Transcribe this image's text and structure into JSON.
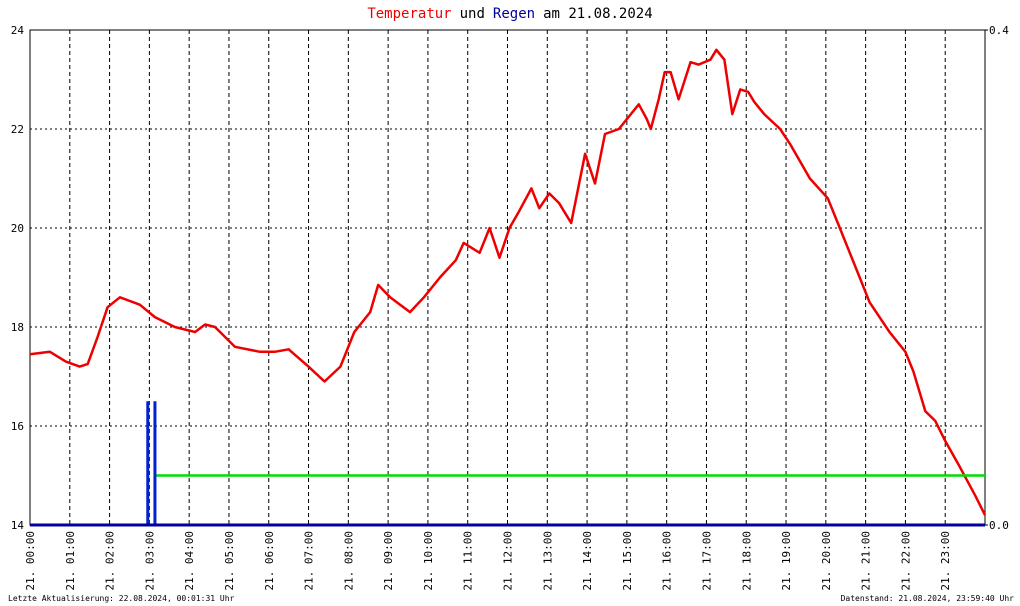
{
  "chart_data": {
    "type": "line",
    "title_parts": [
      {
        "text": "Temperatur",
        "color": "#ee0000"
      },
      {
        "text": "und",
        "color": "#000000"
      },
      {
        "text": "Regen",
        "color": "#000099"
      },
      {
        "text": "am 21.08.2024",
        "color": "#000000"
      }
    ],
    "footer_left": "Letzte Aktualisierung: 22.08.2024, 00:01:31 Uhr",
    "footer_right": "Datenstand: 21.08.2024, 23:59:40 Uhr",
    "xlim": [
      0,
      24
    ],
    "xticks": [
      {
        "value": 0,
        "label": "21. 00:00"
      },
      {
        "value": 1,
        "label": "21. 01:00"
      },
      {
        "value": 2,
        "label": "21. 02:00"
      },
      {
        "value": 3,
        "label": "21. 03:00"
      },
      {
        "value": 4,
        "label": "21. 04:00"
      },
      {
        "value": 5,
        "label": "21. 05:00"
      },
      {
        "value": 6,
        "label": "21. 06:00"
      },
      {
        "value": 7,
        "label": "21. 07:00"
      },
      {
        "value": 8,
        "label": "21. 08:00"
      },
      {
        "value": 9,
        "label": "21. 09:00"
      },
      {
        "value": 10,
        "label": "21. 10:00"
      },
      {
        "value": 11,
        "label": "21. 11:00"
      },
      {
        "value": 12,
        "label": "21. 12:00"
      },
      {
        "value": 13,
        "label": "21. 13:00"
      },
      {
        "value": 14,
        "label": "21. 14:00"
      },
      {
        "value": 15,
        "label": "21. 15:00"
      },
      {
        "value": 16,
        "label": "21. 16:00"
      },
      {
        "value": 17,
        "label": "21. 17:00"
      },
      {
        "value": 18,
        "label": "21. 18:00"
      },
      {
        "value": 19,
        "label": "21. 19:00"
      },
      {
        "value": 20,
        "label": "21. 20:00"
      },
      {
        "value": 21,
        "label": "21. 21:00"
      },
      {
        "value": 22,
        "label": "21. 22:00"
      },
      {
        "value": 23,
        "label": "21. 23:00"
      }
    ],
    "ylim": [
      14,
      24
    ],
    "yticks": [
      14,
      16,
      18,
      20,
      22,
      24
    ],
    "y2lim": [
      0,
      0.4
    ],
    "y2ticks": [
      {
        "value": 0,
        "label": "0.0"
      },
      {
        "value": 0.4,
        "label": "0.4"
      }
    ],
    "grid": true,
    "series": [
      {
        "color": "#ee0000",
        "kind": "line",
        "x": [
          0,
          0.5,
          0.9,
          1.25,
          1.45,
          1.7,
          1.95,
          2.26,
          2.76,
          3.14,
          3.64,
          4.15,
          4.4,
          4.65,
          5.15,
          5.78,
          6.15,
          6.5,
          7.0,
          7.4,
          7.8,
          8.15,
          8.55,
          8.75,
          9.05,
          9.3,
          9.55,
          9.9,
          10.3,
          10.7,
          10.9,
          11.3,
          11.55,
          11.8,
          12.05,
          12.3,
          12.6,
          12.8,
          13.05,
          13.3,
          13.6,
          13.95,
          14.2,
          14.45,
          14.8,
          15.1,
          15.3,
          15.5,
          15.6,
          15.8,
          15.95,
          16.1,
          16.3,
          16.6,
          16.8,
          17.1,
          17.25,
          17.45,
          17.65,
          17.85,
          18.05,
          18.2,
          18.45,
          18.85,
          19.1,
          19.6,
          20.05,
          20.35,
          20.85,
          21.1,
          21.6,
          22.0,
          22.2,
          22.5,
          22.75,
          23.0,
          23.35,
          23.75,
          24
        ],
        "values": [
          17.45,
          17.5,
          17.3,
          17.2,
          17.25,
          17.8,
          18.4,
          18.6,
          18.45,
          18.2,
          18.0,
          17.9,
          18.05,
          18.0,
          17.6,
          17.5,
          17.5,
          17.55,
          17.2,
          16.9,
          17.2,
          17.9,
          18.3,
          18.85,
          18.6,
          18.45,
          18.3,
          18.6,
          19.0,
          19.35,
          19.7,
          19.5,
          20.0,
          19.4,
          20.0,
          20.35,
          20.8,
          20.4,
          20.7,
          20.5,
          20.1,
          21.5,
          20.9,
          21.9,
          22.0,
          22.3,
          22.5,
          22.2,
          22.0,
          22.6,
          23.15,
          23.15,
          22.6,
          23.35,
          23.3,
          23.4,
          23.6,
          23.4,
          22.3,
          22.8,
          22.75,
          22.55,
          22.3,
          22.0,
          21.7,
          21.0,
          20.6,
          20.0,
          19.0,
          18.5,
          17.9,
          17.5,
          17.1,
          16.3,
          16.1,
          15.7,
          15.2,
          14.6,
          14.2
        ]
      },
      {
        "color": "#00dd00",
        "kind": "line",
        "x": [
          3.15,
          24
        ],
        "values": [
          15,
          15
        ]
      },
      {
        "color": "#0022cc",
        "kind": "bar",
        "axis": "y2",
        "x": [
          2.96,
          3.14
        ],
        "values": [
          0.1,
          0.1
        ]
      }
    ]
  }
}
